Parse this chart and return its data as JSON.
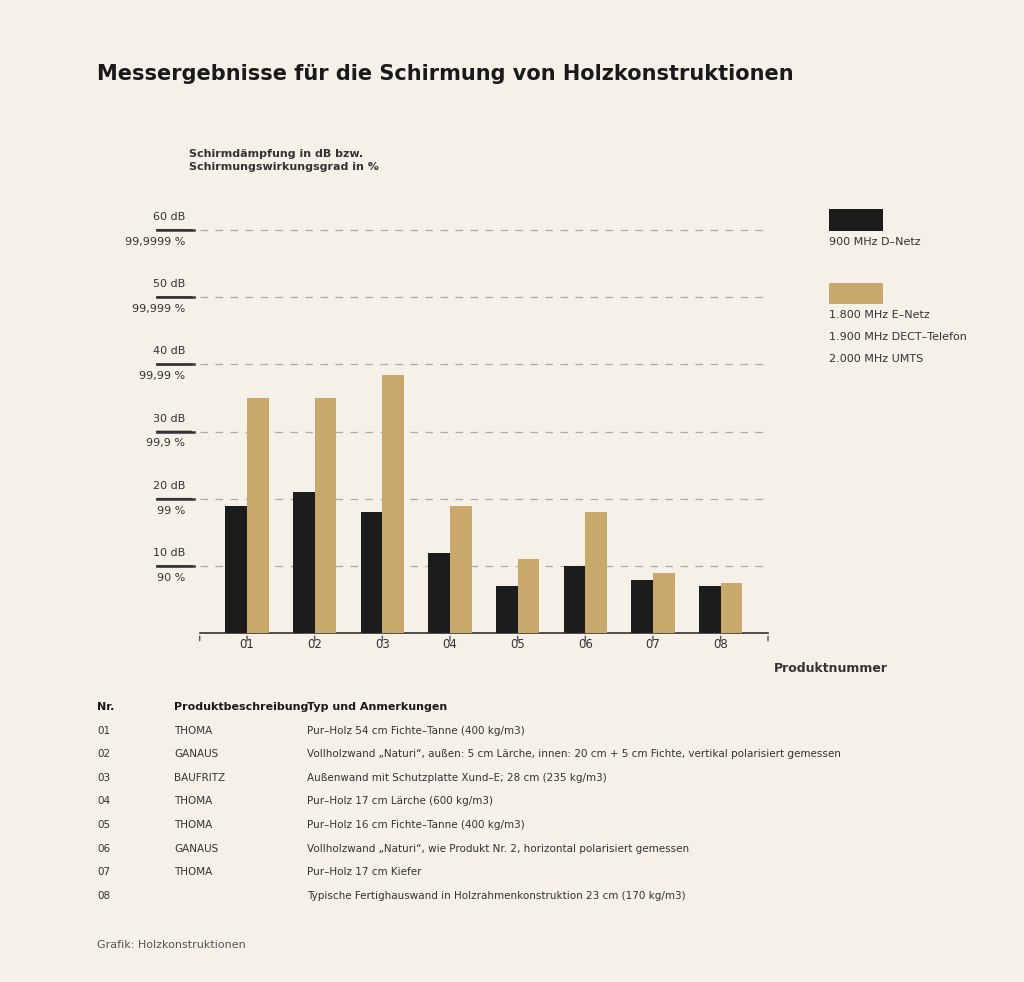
{
  "title": "Messergebnisse für die Schirmung von Holzkonstruktionen",
  "ylabel_line1": "Schirmdämpfung in dB bzw.",
  "ylabel_line2": "Schirmungswirkungsgrad in %",
  "xlabel": "Produktnummer",
  "background_color": "#f5f0e8",
  "categories": [
    "01",
    "02",
    "03",
    "04",
    "05",
    "06",
    "07",
    "08"
  ],
  "series1_label": "900 MHz D–Netz",
  "series2_label_lines": [
    "1.800 MHz E–Netz",
    "1.900 MHz DECT–Telefon",
    "2.000 MHz UMTS"
  ],
  "series1_color": "#1c1c1c",
  "series2_color": "#c8a86b",
  "series1_values": [
    19.0,
    21.0,
    18.0,
    12.0,
    7.0,
    10.0,
    8.0,
    7.0
  ],
  "series2_values": [
    35.0,
    35.0,
    38.5,
    19.0,
    11.0,
    18.0,
    9.0,
    7.5
  ],
  "yticks": [
    10,
    20,
    30,
    40,
    50,
    60
  ],
  "ytick_labels": [
    [
      "10 dB",
      "90 %"
    ],
    [
      "20 dB",
      "99 %"
    ],
    [
      "30 dB",
      "99,9 %"
    ],
    [
      "40 dB",
      "99,99 %"
    ],
    [
      "50 dB",
      "99,999 %"
    ],
    [
      "60 dB",
      "99,9999 %"
    ]
  ],
  "ylim": [
    0,
    65
  ],
  "table_headers": [
    "Nr.",
    "Produktbeschreibung",
    "Typ und Anmerkungen"
  ],
  "table_rows": [
    [
      "01",
      "THOMA",
      "Pur–Holz 54 cm Fichte–Tanne (400 kg/m3)"
    ],
    [
      "02",
      "GANAUS",
      "Vollholzwand „Naturi“, außen: 5 cm Lärche, innen: 20 cm + 5 cm Fichte, vertikal polarisiert gemessen"
    ],
    [
      "03",
      "BAUFRITZ",
      "Außenwand mit Schutzplatte Xund–E; 28 cm (235 kg/m3)"
    ],
    [
      "04",
      "THOMA",
      "Pur–Holz 17 cm Lärche (600 kg/m3)"
    ],
    [
      "05",
      "THOMA",
      "Pur–Holz 16 cm Fichte–Tanne (400 kg/m3)"
    ],
    [
      "06",
      "GANAUS",
      "Vollholzwand „Naturi“, wie Produkt Nr. 2, horizontal polarisiert gemessen"
    ],
    [
      "07",
      "THOMA",
      "Pur–Holz 17 cm Kiefer"
    ],
    [
      "08",
      "",
      "Typische Fertighauswand in Holzrahmenkonstruktion 23 cm (170 kg/m3)"
    ]
  ],
  "footer": "Grafik: Holzkonstruktionen"
}
